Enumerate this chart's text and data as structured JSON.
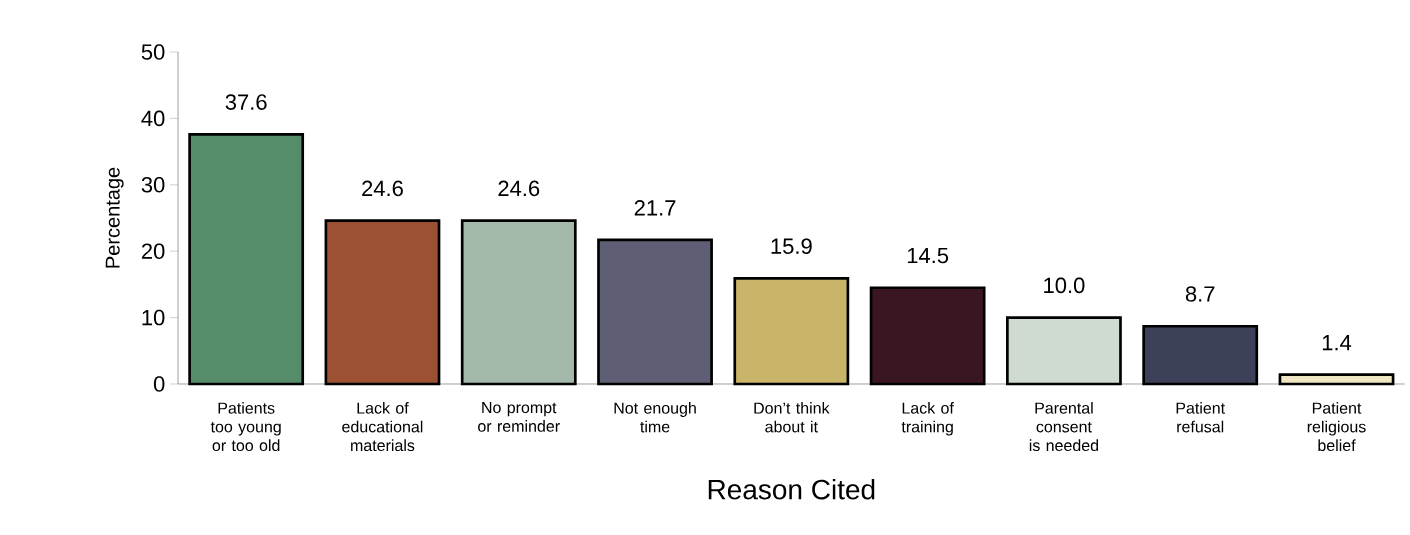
{
  "chart_data": {
    "type": "bar",
    "xlabel": "Reason Cited",
    "ylabel": "Percentage",
    "categories": [
      "Patients too young or too old",
      "Lack of educational materials",
      "No prompt or reminder",
      "Not enough time",
      "Don’t think about it",
      "Lack of training",
      "Parental consent is needed",
      "Patient refusal",
      "Patient religious belief"
    ],
    "values": [
      37.6,
      24.6,
      24.6,
      21.7,
      15.9,
      14.5,
      10.0,
      8.7,
      1.4
    ],
    "colors": [
      "#558d6b",
      "#9c5232",
      "#a5b9aa",
      "#5e5f75",
      "#c9b569",
      "#3a1522",
      "#cfdbd0",
      "#3c4159",
      "#efe6c4"
    ],
    "value_labels": [
      "37.6",
      "24.6",
      "24.6",
      "21.7",
      "15.9",
      "14.5",
      "10.0",
      "8.7",
      "1.4"
    ],
    "ylim": [
      0,
      50
    ],
    "yticks": [
      0,
      10,
      20,
      30,
      40,
      50
    ]
  }
}
